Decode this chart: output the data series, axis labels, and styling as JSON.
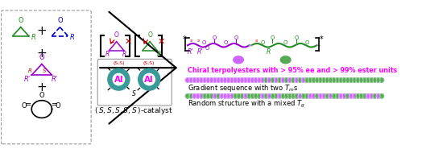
{
  "background_color": "#ffffff",
  "figsize": [
    5.29,
    1.9
  ],
  "dpi": 100,
  "colors": {
    "green": "#228B22",
    "blue": "#0000CD",
    "purple": "#9900CC",
    "magenta": "#FF00FF",
    "teal": "#3A9999",
    "red": "#CC0000",
    "black": "#000000",
    "gray": "#999999",
    "dark_green": "#006400",
    "orange_red": "#DD2200"
  },
  "bead_purple": "#CC66FF",
  "bead_green": "#55AA55",
  "chiral_text": "Chiral terpolyesters with > 95% ee and > 99% ester units",
  "gradient_text": "Gradient sequence with two ",
  "random_text": "Random structure with a mixed ",
  "catalyst_label": "(S,S,S,S,S)-catalyst",
  "ss_label": "(S,S)",
  "al_label": "Al"
}
